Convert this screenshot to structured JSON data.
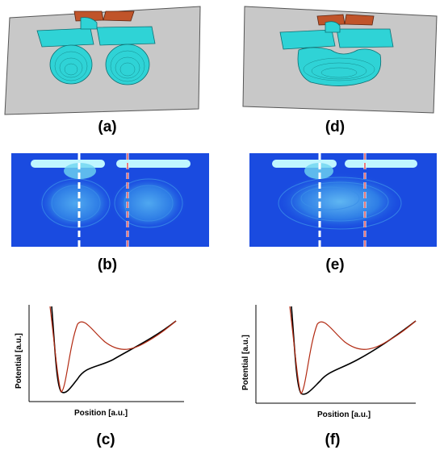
{
  "panel_labels": {
    "a": "(a)",
    "b": "(b)",
    "c": "(c)",
    "d": "(d)",
    "e": "(e)",
    "f": "(f)"
  },
  "plots": {
    "ylabel": "Potential [a.u.]",
    "xlabel": "Position [a.u.]"
  },
  "colors": {
    "plane_gray": "#c8c8c8",
    "cyan_iso": "#2fd3d6",
    "gate_orange": "#c0542a",
    "field_blue": "#1a4be0",
    "curve_black": "#000000",
    "curve_red": "#b22a12"
  }
}
